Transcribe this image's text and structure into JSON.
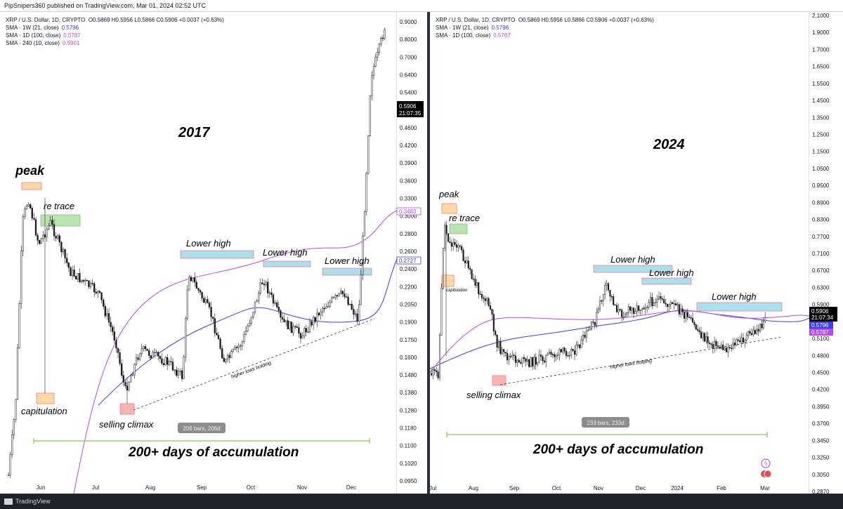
{
  "header": {
    "publisher": "PipSnipers360 published on TradingView.com, Mar 01, 2024 02:52 UTC"
  },
  "footer": {
    "brand": "TradingView"
  },
  "colors": {
    "up": "#1a1a1a",
    "sma_weekly": "#3d3df5",
    "sma_daily": "#b44bf0",
    "sma_240": "#c050f0",
    "accum": "#8bc34a"
  },
  "chart_data": [
    {
      "type": "candlestick",
      "panel": "left",
      "symbol_line": "XRP / U.S. Dollar, 1D, CRYPTO",
      "ohlc": "O0.5869 H0.5956 L0.5866 C0.5906 +0.0037 (+0.63%)",
      "indicators": [
        {
          "label": "SMA · 1W (21, close)",
          "value": "0.5796"
        },
        {
          "label": "SMA · 1D (100, close)",
          "value": "0.5787"
        },
        {
          "label": "SMA · 240 (10, close)",
          "value": "0.5901"
        }
      ],
      "y_ticks": [
        "0.9000",
        "0.8000",
        "0.7000",
        "0.6400",
        "0.5400",
        "0.5000",
        "0.4600",
        "0.4200",
        "0.3900",
        "0.3600",
        "0.3300",
        "0.3000",
        "0.2800",
        "0.2600",
        "0.2400",
        "0.2200",
        "0.2050",
        "0.1900",
        "0.1750",
        "0.1600",
        "0.1480",
        "0.1380",
        "0.1280",
        "0.1180",
        "0.1100",
        "0.1020",
        "0.0950"
      ],
      "x_ticks": [
        "Jun",
        "Jul",
        "Aug",
        "Sep",
        "Oct",
        "Nov",
        "Dec"
      ],
      "y_scale": "log",
      "price_tags": [
        {
          "text": "0.5906",
          "time": "21:07:35",
          "price": 0.5906
        },
        {
          "text": "0.3483",
          "price": 0.3483
        },
        {
          "text": "0.2727",
          "price": 0.2727
        }
      ],
      "title": "2017",
      "annotations": {
        "peak": "peak",
        "retrace": "re trace",
        "capitulation": "capitulation",
        "climax": "selling climax",
        "lh1": "Lower high",
        "lh2": "Lower high",
        "lh3": "Lower high",
        "higher_lows": "higher lows holding",
        "accumulation": "200+ days of accumulation",
        "bars": "206 bars, 206d"
      }
    },
    {
      "type": "candlestick",
      "panel": "right",
      "symbol_line": "XRP / U.S. Dollar, 1D, CRYPTO",
      "ohlc": "O0.5869 H0.5956 L0.5866 C0.5906 +0.0037 (+0.63%)",
      "indicators": [
        {
          "label": "SMA · 1W (21, close)",
          "value": "0.5796"
        },
        {
          "label": "SMA · 1D (100, close)",
          "value": "0.5787"
        }
      ],
      "y_ticks": [
        "2.1000",
        "1.9000",
        "1.7000",
        "1.6500",
        "1.5500",
        "1.4500",
        "1.3500",
        "1.2500",
        "1.1500",
        "1.0500",
        "0.9500",
        "0.8900",
        "0.8300",
        "0.7700",
        "0.7100",
        "0.6700",
        "0.6300",
        "0.5900",
        "0.5500",
        "0.5100",
        "0.4800",
        "0.4500",
        "0.4200",
        "0.3950",
        "0.3700",
        "0.3450",
        "0.3250",
        "0.3050",
        "0.2870"
      ],
      "x_ticks": [
        "Jul",
        "Aug",
        "Sep",
        "Oct",
        "Nov",
        "Dec",
        "2024",
        "Feb",
        "Mar"
      ],
      "y_scale": "log",
      "price_tags": [
        {
          "text": "0.5906",
          "time": "21:07:34",
          "price": 0.5906
        },
        {
          "text": "0.5796",
          "price": 0.5796
        },
        {
          "text": "0.5787",
          "price": 0.5787
        }
      ],
      "title": "2024",
      "annotations": {
        "peak": "peak",
        "retrace": "re trace",
        "capitulation": "capitulation",
        "climax": "selling climax",
        "lh1": "Lower high",
        "lh2": "Lower high",
        "lh3": "Lower high",
        "higher_lows": "higher lows holding",
        "accumulation": "200+ days of accumulation",
        "bars": "233 bars, 233d"
      }
    }
  ]
}
